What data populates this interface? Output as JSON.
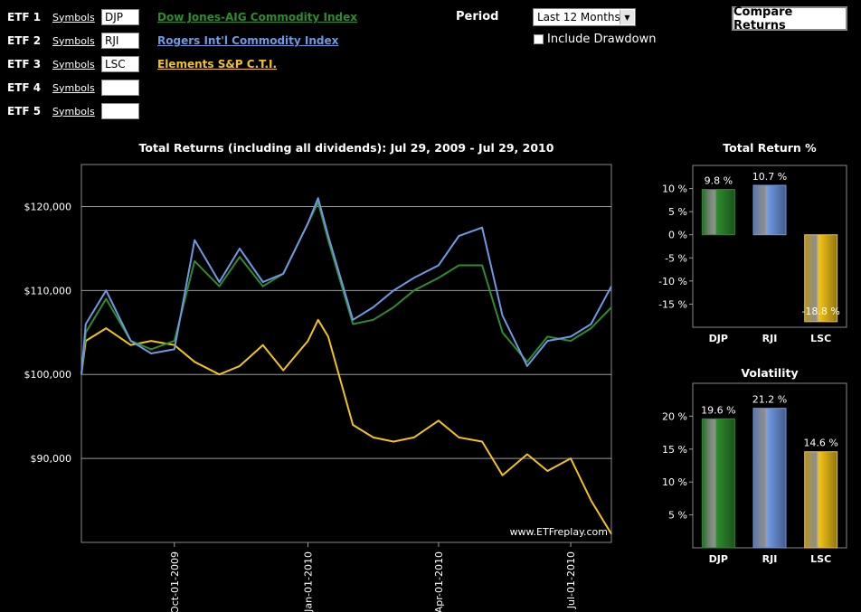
{
  "etfs": [
    {
      "label": "ETF 1",
      "symbols_link": "Symbols",
      "symbol": "DJP",
      "name": "Dow Jones-AIG Commodity Index",
      "color": "#2E8B2E"
    },
    {
      "label": "ETF 2",
      "symbols_link": "Symbols",
      "symbol": "RJI",
      "name": "Rogers Int'l Commodity Index",
      "color": "#6E99E3"
    },
    {
      "label": "ETF 3",
      "symbols_link": "Symbols",
      "symbol": "LSC",
      "name": "Elements S&P C.T.I.",
      "color": "#F2C318"
    },
    {
      "label": "ETF 4",
      "symbols_link": "Symbols",
      "symbol": "",
      "name": ""
    },
    {
      "label": "ETF 5",
      "symbols_link": "Symbols",
      "symbol": "",
      "name": ""
    }
  ],
  "period": {
    "label": "Period",
    "selected": "Last 12 Months"
  },
  "drawdown_label": "Include Drawdown",
  "compare_button": "Compare Returns",
  "chart_data": [
    {
      "type": "line",
      "title": "Total Returns (including all dividends): Jul 29, 2009 - Jul 29, 2010",
      "watermark": "www.ETFreplay.com",
      "ylim": [
        80000,
        125000
      ],
      "yticks": [
        100000,
        110000,
        120000,
        90000
      ],
      "ytick_labels": [
        "$100,000",
        "$110,000",
        "$120,000",
        "$90,000"
      ],
      "xticks": [
        "Oct-01-2009",
        "Jan-01-2010",
        "Apr-01-2010",
        "Jul-01-2010"
      ],
      "x": [
        "2009-07-29",
        "2009-08-01",
        "2009-08-15",
        "2009-09-01",
        "2009-09-15",
        "2009-10-01",
        "2009-10-15",
        "2009-11-01",
        "2009-11-15",
        "2009-12-01",
        "2009-12-15",
        "2010-01-01",
        "2010-01-08",
        "2010-01-15",
        "2010-02-01",
        "2010-02-15",
        "2010-03-01",
        "2010-03-15",
        "2010-04-01",
        "2010-04-15",
        "2010-05-01",
        "2010-05-15",
        "2010-06-01",
        "2010-06-15",
        "2010-07-01",
        "2010-07-15",
        "2010-07-29"
      ],
      "series": [
        {
          "name": "DJP",
          "color": "#2E8B2E",
          "values": [
            100000,
            105000,
            109000,
            104000,
            103000,
            104000,
            113500,
            110500,
            114000,
            110500,
            112000,
            118000,
            120500,
            116000,
            106000,
            106500,
            108000,
            110000,
            111500,
            113000,
            113000,
            105000,
            101500,
            104500,
            104000,
            105500,
            108000
          ]
        },
        {
          "name": "RJI",
          "color": "#6E99E3",
          "values": [
            100000,
            106000,
            110000,
            104000,
            102500,
            103000,
            116000,
            111000,
            115000,
            111000,
            112000,
            118000,
            121000,
            116500,
            106500,
            108000,
            110000,
            111500,
            113000,
            116500,
            117500,
            107000,
            101000,
            104000,
            104500,
            106000,
            110500
          ]
        },
        {
          "name": "LSC",
          "color": "#F2C318",
          "values": [
            100000,
            104000,
            105500,
            103500,
            104000,
            103500,
            101500,
            100000,
            101000,
            103500,
            100500,
            104000,
            106500,
            104500,
            94000,
            92500,
            92000,
            92500,
            94500,
            92500,
            92000,
            88000,
            90500,
            88500,
            90000,
            85000,
            81000
          ]
        }
      ]
    },
    {
      "type": "bar",
      "title": "Total Return %",
      "categories": [
        "DJP",
        "RJI",
        "LSC"
      ],
      "values": [
        9.8,
        10.7,
        -18.8
      ],
      "value_labels": [
        "9.8 %",
        "10.7 %",
        "-18.8 %"
      ],
      "ylim": [
        -20,
        15
      ],
      "yticks": [
        10,
        5,
        0,
        -5,
        -10,
        -15
      ],
      "ytick_labels": [
        "10 %",
        "5 %",
        "0 %",
        "-5 %",
        "-10 %",
        "-15 %"
      ],
      "colors": [
        "#2E8B2E",
        "#6E99E3",
        "#F2C318"
      ]
    },
    {
      "type": "bar",
      "title": "Volatility",
      "categories": [
        "DJP",
        "RJI",
        "LSC"
      ],
      "values": [
        19.6,
        21.2,
        14.6
      ],
      "value_labels": [
        "19.6 %",
        "21.2 %",
        "14.6 %"
      ],
      "ylim": [
        0,
        25
      ],
      "yticks": [
        20,
        15,
        10,
        5
      ],
      "ytick_labels": [
        "20 %",
        "15 %",
        "10 %",
        "5 %"
      ],
      "colors": [
        "#2E8B2E",
        "#6E99E3",
        "#F2C318"
      ]
    }
  ]
}
